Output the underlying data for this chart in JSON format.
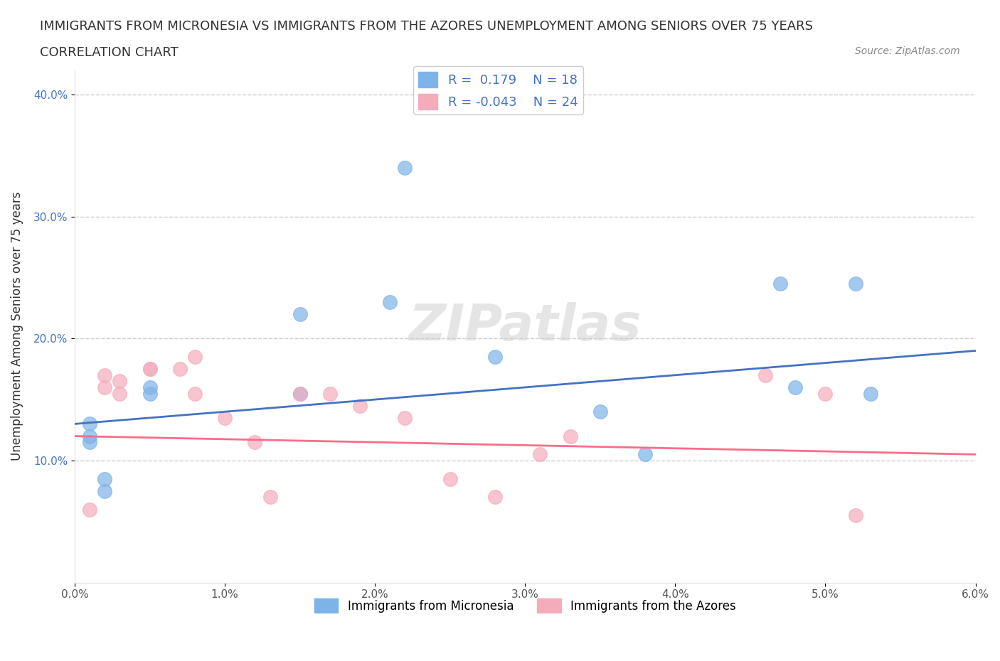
{
  "title_line1": "IMMIGRANTS FROM MICRONESIA VS IMMIGRANTS FROM THE AZORES UNEMPLOYMENT AMONG SENIORS OVER 75 YEARS",
  "title_line2": "CORRELATION CHART",
  "source_text": "Source: ZipAtlas.com",
  "xlabel": "",
  "ylabel": "Unemployment Among Seniors over 75 years",
  "xlim": [
    0.0,
    0.06
  ],
  "ylim": [
    0.0,
    0.42
  ],
  "xtick_labels": [
    "0.0%",
    "1.0%",
    "2.0%",
    "3.0%",
    "4.0%",
    "5.0%",
    "6.0%"
  ],
  "xtick_values": [
    0.0,
    0.01,
    0.02,
    0.03,
    0.04,
    0.05,
    0.06
  ],
  "ytick_labels": [
    "10.0%",
    "20.0%",
    "30.0%",
    "40.0%"
  ],
  "ytick_values": [
    0.1,
    0.2,
    0.3,
    0.4
  ],
  "blue_color": "#7EB3E8",
  "blue_line_color": "#4472C4",
  "pink_color": "#F4ACBB",
  "pink_line_color": "#FF6B8A",
  "R_blue": 0.179,
  "N_blue": 18,
  "R_pink": -0.043,
  "N_pink": 24,
  "legend_label_blue": "Immigrants from Micronesia",
  "legend_label_pink": "Immigrants from the Azores",
  "watermark": "ZIPatlas",
  "blue_scatter_x": [
    0.001,
    0.002,
    0.002,
    0.001,
    0.001,
    0.005,
    0.005,
    0.015,
    0.015,
    0.021,
    0.022,
    0.028,
    0.035,
    0.038,
    0.048,
    0.047,
    0.052,
    0.053
  ],
  "blue_scatter_y": [
    0.115,
    0.085,
    0.075,
    0.13,
    0.12,
    0.16,
    0.155,
    0.155,
    0.22,
    0.23,
    0.34,
    0.185,
    0.14,
    0.105,
    0.16,
    0.245,
    0.245,
    0.155
  ],
  "pink_scatter_x": [
    0.001,
    0.002,
    0.002,
    0.003,
    0.003,
    0.005,
    0.005,
    0.007,
    0.008,
    0.008,
    0.01,
    0.012,
    0.013,
    0.015,
    0.017,
    0.019,
    0.022,
    0.025,
    0.028,
    0.031,
    0.033,
    0.046,
    0.05,
    0.052
  ],
  "pink_scatter_y": [
    0.06,
    0.16,
    0.17,
    0.165,
    0.155,
    0.175,
    0.175,
    0.175,
    0.185,
    0.155,
    0.135,
    0.115,
    0.07,
    0.155,
    0.155,
    0.145,
    0.135,
    0.085,
    0.07,
    0.105,
    0.12,
    0.17,
    0.155,
    0.055
  ],
  "blue_trendline_x": [
    0.0,
    0.06
  ],
  "blue_trendline_y": [
    0.13,
    0.19
  ],
  "pink_trendline_x": [
    0.0,
    0.06
  ],
  "pink_trendline_y": [
    0.12,
    0.105
  ]
}
